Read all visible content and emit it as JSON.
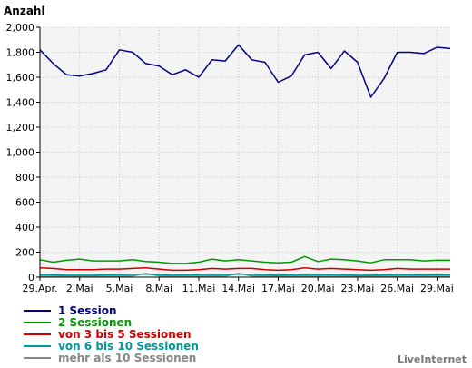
{
  "chart_data": {
    "type": "line",
    "ylabel": "Anzahl",
    "ylim": [
      0,
      2000
    ],
    "yticks": [
      0,
      200,
      400,
      600,
      800,
      1000,
      1200,
      1400,
      1600,
      1800,
      2000
    ],
    "ytick_labels": [
      "0",
      "200",
      "400",
      "600",
      "800",
      "1,000",
      "1,200",
      "1,400",
      "1,600",
      "1,800",
      "2,000"
    ],
    "x": [
      "29.Apr.",
      "30.Apr.",
      "1.Mai",
      "2.Mai",
      "3.Mai",
      "4.Mai",
      "5.Mai",
      "6.Mai",
      "7.Mai",
      "8.Mai",
      "9.Mai",
      "10.Mai",
      "11.Mai",
      "12.Mai",
      "13.Mai",
      "14.Mai",
      "15.Mai",
      "16.Mai",
      "17.Mai",
      "18.Mai",
      "19.Mai",
      "20.Mai",
      "21.Mai",
      "22.Mai",
      "23.Mai",
      "24.Mai",
      "25.Mai",
      "26.Mai",
      "27.Mai",
      "28.Mai",
      "29.Mai",
      "30.Mai"
    ],
    "xtick_labels": [
      "29.Apr.",
      "2.Mai",
      "5.Mai",
      "8.Mai",
      "11.Mai",
      "14.Mai",
      "17.Mai",
      "20.Mai",
      "23.Mai",
      "26.Mai",
      "29.Mai"
    ],
    "grid": true,
    "legend_position": "bottom-left",
    "series": [
      {
        "name": "1 Session",
        "color": "#000080",
        "values": [
          1820,
          1710,
          1620,
          1610,
          1630,
          1660,
          1820,
          1800,
          1710,
          1690,
          1620,
          1660,
          1600,
          1740,
          1730,
          1860,
          1740,
          1720,
          1560,
          1610,
          1780,
          1800,
          1670,
          1810,
          1720,
          1440,
          1590,
          1800,
          1800,
          1790,
          1840,
          1830
        ]
      },
      {
        "name": "2 Sessionen",
        "color": "#009900",
        "values": [
          140,
          120,
          135,
          145,
          130,
          130,
          130,
          140,
          125,
          120,
          110,
          110,
          120,
          145,
          130,
          140,
          130,
          120,
          115,
          120,
          165,
          125,
          145,
          140,
          130,
          115,
          140,
          140,
          140,
          130,
          135,
          135
        ]
      },
      {
        "name": "von 3 bis 5 Sessionen",
        "color": "#cc0000",
        "values": [
          75,
          70,
          60,
          60,
          60,
          65,
          65,
          70,
          75,
          65,
          55,
          55,
          60,
          70,
          65,
          70,
          70,
          60,
          55,
          60,
          75,
          65,
          70,
          65,
          60,
          55,
          60,
          70,
          65,
          65,
          65,
          65
        ]
      },
      {
        "name": "von 6 bis 10 Sessionen",
        "color": "#009999",
        "values": [
          20,
          18,
          15,
          15,
          15,
          18,
          20,
          22,
          25,
          20,
          18,
          18,
          20,
          22,
          20,
          25,
          22,
          18,
          15,
          18,
          22,
          20,
          20,
          18,
          15,
          15,
          18,
          20,
          20,
          18,
          20,
          20
        ]
      },
      {
        "name": "mehr als 10 Sessionen",
        "color": "#888888",
        "values": [
          8,
          7,
          6,
          6,
          6,
          7,
          8,
          10,
          30,
          10,
          8,
          8,
          8,
          10,
          8,
          30,
          10,
          8,
          6,
          8,
          10,
          8,
          8,
          8,
          6,
          6,
          8,
          8,
          8,
          8,
          8,
          8
        ]
      }
    ]
  },
  "watermark": "LiveInternet"
}
